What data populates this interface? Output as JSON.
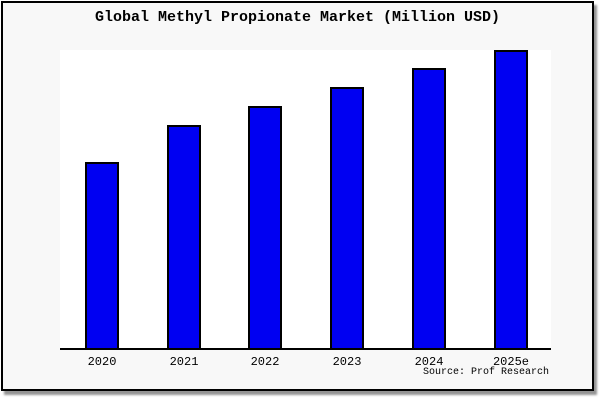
{
  "chart": {
    "title": "Global Methyl Propionate Market (Million USD)",
    "source": "Source: Prof Research"
  },
  "chart_data": {
    "type": "bar",
    "title": "Global Methyl Propionate Market (Million USD)",
    "categories": [
      "2020",
      "2021",
      "2022",
      "2023",
      "2024",
      "2025e"
    ],
    "values": [
      62.7,
      75.0,
      81.3,
      87.7,
      94.0,
      100.0
    ],
    "value_scale": "relative percent of tallest (2025e) bar; chart displays no y-axis tick labels",
    "xlabel": "",
    "ylabel": "",
    "ylim": [
      0,
      100
    ],
    "grid": false,
    "legend": false,
    "y_axis_visible": false,
    "bar_color": "#0000f2",
    "bar_edge_color": "#000000",
    "figure_background": "#f8f8f8",
    "plot_background": "#ffffff",
    "source": "Source: Prof Research"
  }
}
